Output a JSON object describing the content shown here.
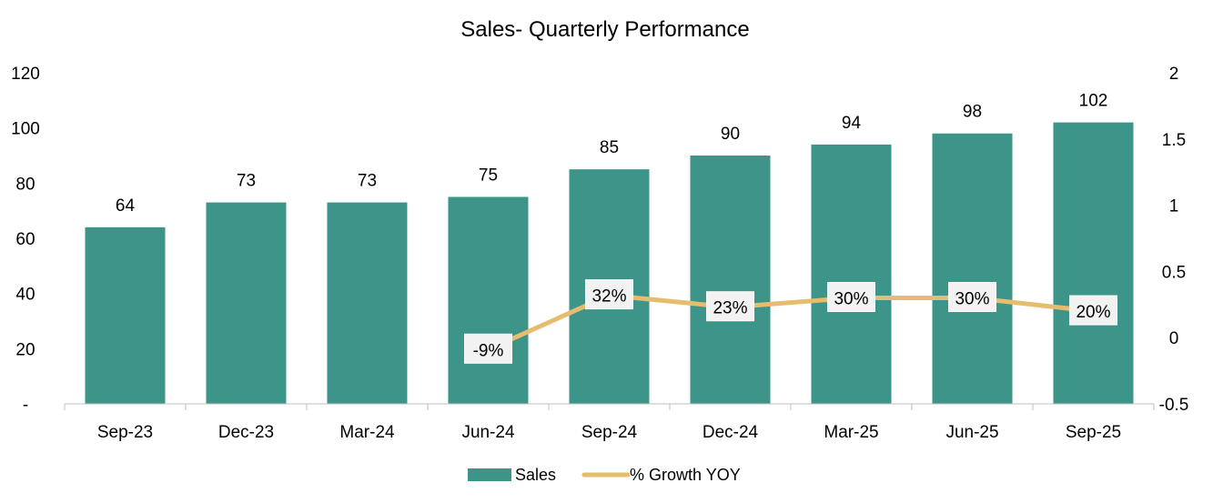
{
  "chart_data": {
    "type": "bar",
    "title": "Sales- Quarterly Performance",
    "categories": [
      "Sep-23",
      "Dec-23",
      "Mar-24",
      "Jun-24",
      "Sep-24",
      "Dec-24",
      "Mar-25",
      "Jun-25",
      "Sep-25"
    ],
    "series": [
      {
        "name": "Sales",
        "type": "bar",
        "axis": "left",
        "values": [
          64,
          73,
          73,
          75,
          85,
          90,
          94,
          98,
          102
        ],
        "labels": [
          "64",
          "73",
          "73",
          "75",
          "85",
          "90",
          "94",
          "98",
          "102"
        ],
        "color": "#3D958A"
      },
      {
        "name": "% Growth YOY",
        "type": "line",
        "axis": "right",
        "values": [
          null,
          null,
          null,
          -0.09,
          0.32,
          0.23,
          0.3,
          0.3,
          0.2
        ],
        "labels": [
          null,
          null,
          null,
          "-9%",
          "32%",
          "23%",
          "30%",
          "30%",
          "20%"
        ],
        "color": "#E6BC6E"
      }
    ],
    "y_left": {
      "ylim": [
        0,
        120
      ],
      "ticks": [
        0,
        20,
        40,
        60,
        80,
        100,
        120
      ],
      "tick_labels": [
        "-",
        "20",
        "40",
        "60",
        "80",
        "100",
        "120"
      ]
    },
    "y_right": {
      "ylim": [
        -0.5,
        2
      ],
      "ticks": [
        -0.5,
        0,
        0.5,
        1,
        1.5,
        2
      ],
      "tick_labels": [
        "-0.5",
        "0",
        "0.5",
        "1",
        "1.5",
        "2"
      ]
    },
    "grid": false,
    "legend": {
      "position": "bottom",
      "entries": [
        "Sales",
        "% Growth YOY"
      ]
    }
  }
}
